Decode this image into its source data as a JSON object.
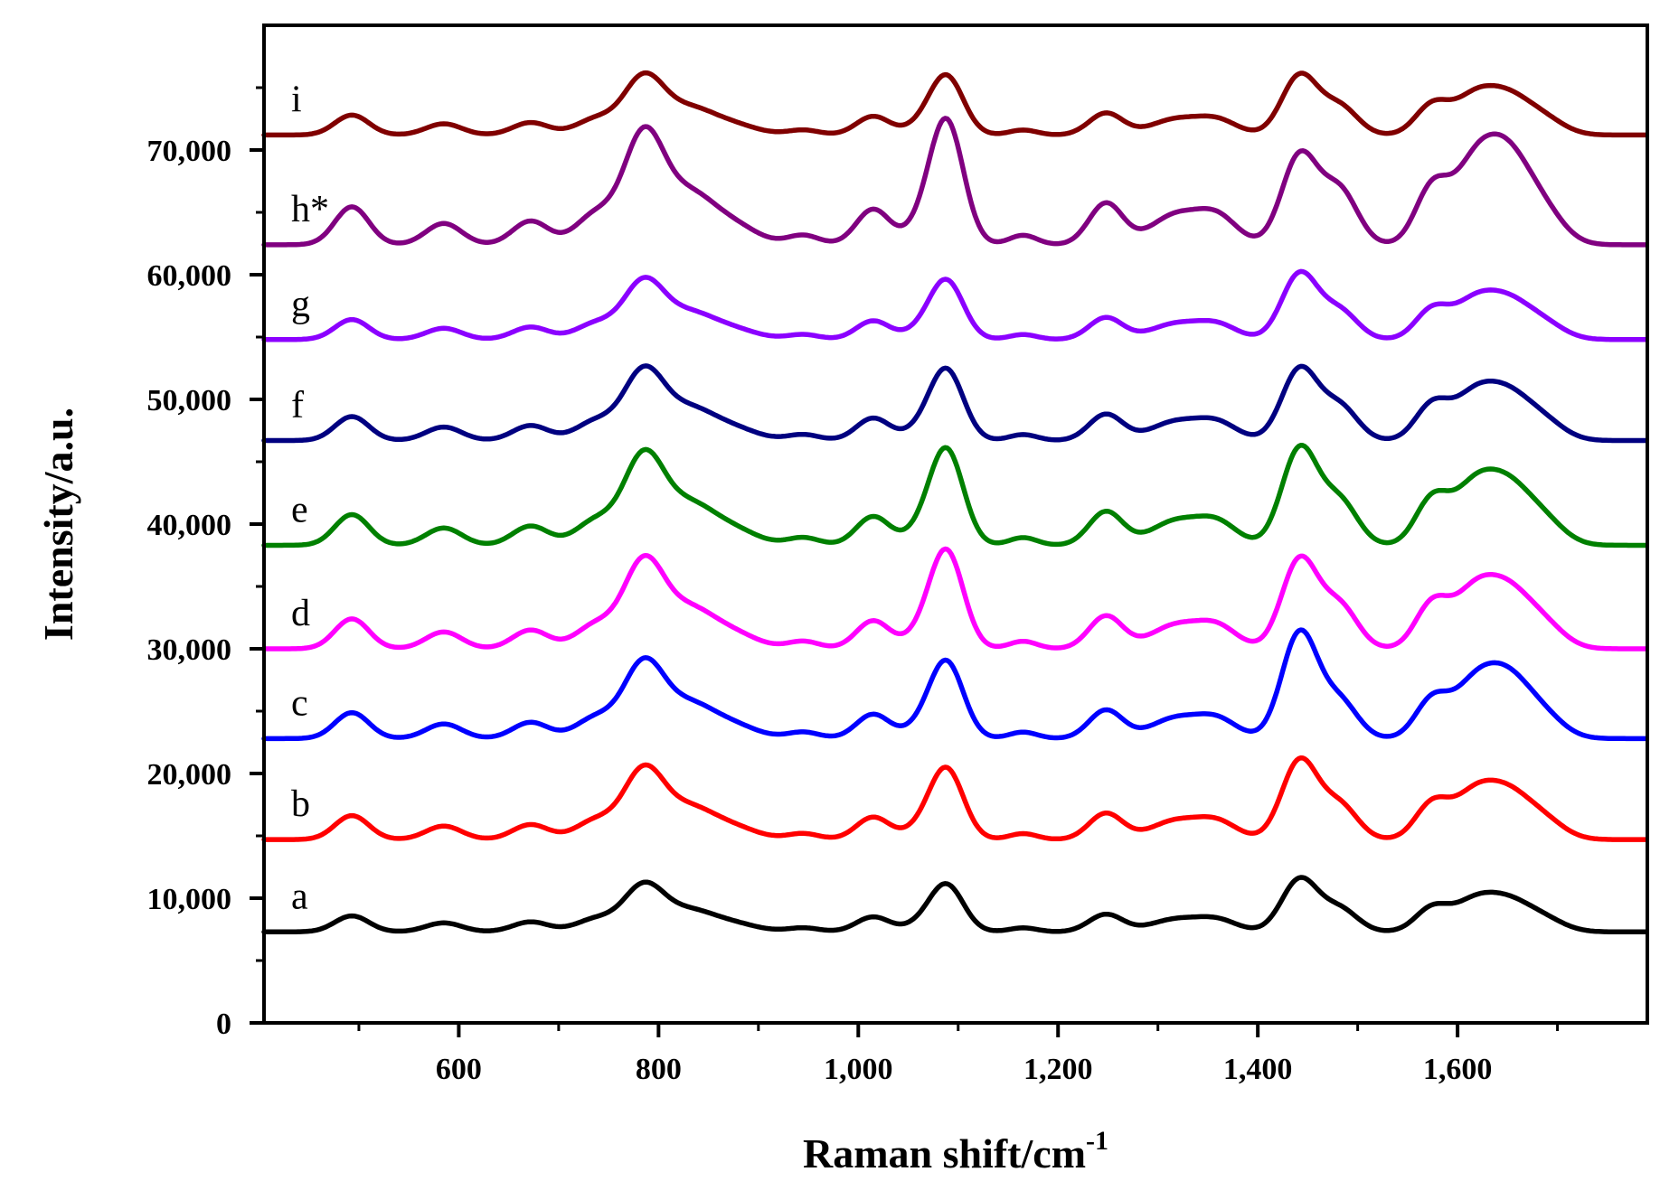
{
  "chart_data": {
    "type": "line",
    "title": "",
    "xlabel": "Raman shift/cm",
    "xlabel_sup": "-1",
    "ylabel": "Intensity/a.u.",
    "xlim": [
      405,
      1790
    ],
    "ylim": [
      0,
      80000
    ],
    "xticks": [
      600,
      800,
      1000,
      1200,
      1400,
      1600
    ],
    "xtick_labels": [
      "600",
      "800",
      "1,000",
      "1,200",
      "1,400",
      "1,600"
    ],
    "yticks": [
      0,
      10000,
      20000,
      30000,
      40000,
      50000,
      60000,
      70000
    ],
    "ytick_labels": [
      "0",
      "10,000",
      "20,000",
      "30,000",
      "40,000",
      "50,000",
      "60,000",
      "70,000"
    ],
    "grid": false,
    "peaks": [
      {
        "pos": 493,
        "width": 17,
        "amp": 0.32
      },
      {
        "pos": 585,
        "width": 18,
        "amp": 0.18
      },
      {
        "pos": 672,
        "width": 18,
        "amp": 0.2
      },
      {
        "pos": 737,
        "width": 20,
        "amp": 0.25
      },
      {
        "pos": 785,
        "width": 20,
        "amp": 0.9
      },
      {
        "pos": 830,
        "width": 25,
        "amp": 0.4
      },
      {
        "pos": 875,
        "width": 25,
        "amp": 0.15
      },
      {
        "pos": 945,
        "width": 16,
        "amp": 0.08
      },
      {
        "pos": 1015,
        "width": 17,
        "amp": 0.3
      },
      {
        "pos": 1060,
        "width": 15,
        "amp": 0.1
      },
      {
        "pos": 1088,
        "width": 17,
        "amp": 0.95
      },
      {
        "pos": 1165,
        "width": 14,
        "amp": 0.08
      },
      {
        "pos": 1248,
        "width": 17,
        "amp": 0.35
      },
      {
        "pos": 1318,
        "width": 25,
        "amp": 0.25
      },
      {
        "pos": 1360,
        "width": 20,
        "amp": 0.22
      },
      {
        "pos": 1442,
        "width": 18,
        "amp": 0.95
      },
      {
        "pos": 1482,
        "width": 18,
        "amp": 0.45
      },
      {
        "pos": 1575,
        "width": 17,
        "amp": 0.48
      },
      {
        "pos": 1612,
        "width": 18,
        "amp": 0.3
      },
      {
        "pos": 1645,
        "width": 28,
        "amp": 0.7
      },
      {
        "pos": 1690,
        "width": 20,
        "amp": 0.15
      }
    ],
    "series": [
      {
        "label": "a",
        "baseline": 7300,
        "scale": 4000,
        "color": "#000000",
        "overrides": {
          "1442": 1.05
        }
      },
      {
        "label": "b",
        "baseline": 14700,
        "scale": 6000,
        "color": "#ff0000",
        "overrides": {
          "1442": 1.05
        }
      },
      {
        "label": "c",
        "baseline": 22800,
        "scale": 6500,
        "color": "#0000ff",
        "overrides": {
          "1442": 1.3,
          "1088": 0.95,
          "1645": 0.85
        }
      },
      {
        "label": "d",
        "baseline": 30000,
        "scale": 7500,
        "color": "#ff00ff",
        "overrides": {
          "1088": 1.05,
          "1442": 0.95
        }
      },
      {
        "label": "e",
        "baseline": 38300,
        "scale": 7700,
        "color": "#008000",
        "overrides": {
          "1088": 1.0,
          "1442": 1.0
        }
      },
      {
        "label": "f",
        "baseline": 46700,
        "scale": 6000,
        "color": "#000080",
        "overrides": {}
      },
      {
        "label": "g",
        "baseline": 54800,
        "scale": 5000,
        "color": "#8b00ff",
        "overrides": {
          "1442": 1.05
        }
      },
      {
        "label": "h*",
        "baseline": 62400,
        "scale": 9500,
        "color": "#800080",
        "overrides": {
          "1088": 1.05,
          "1442": 0.75,
          "1645": 0.85
        }
      },
      {
        "label": "i",
        "baseline": 71200,
        "scale": 5000,
        "color": "#800000",
        "overrides": {}
      }
    ]
  }
}
